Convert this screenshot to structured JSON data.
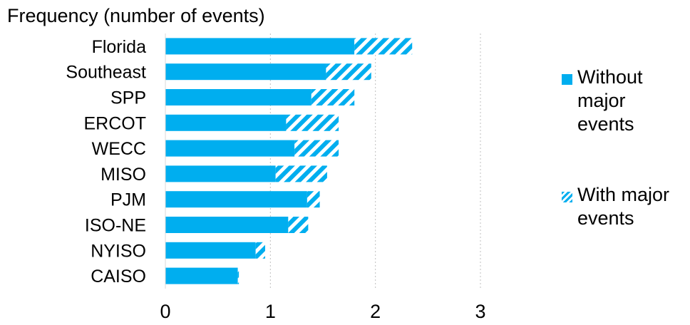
{
  "chart_data": {
    "type": "bar",
    "orientation": "horizontal",
    "stacked": true,
    "title": "Frequency (number of events)",
    "categories": [
      "Florida",
      "Southeast",
      "SPP",
      "ERCOT",
      "WECC",
      "MISO",
      "PJM",
      "ISO-NE",
      "NYISO",
      "CAISO"
    ],
    "series": [
      {
        "name": "Without major events",
        "values": [
          1.8,
          1.53,
          1.39,
          1.15,
          1.23,
          1.05,
          1.35,
          1.17,
          0.86,
          0.69
        ],
        "fill": "solid"
      },
      {
        "name": "With major events",
        "values": [
          0.55,
          0.43,
          0.41,
          0.5,
          0.42,
          0.49,
          0.12,
          0.19,
          0.09,
          0.01
        ],
        "fill": "hatched"
      }
    ],
    "xlim": [
      0,
      3
    ],
    "xticks": [
      "0",
      "1",
      "2",
      "3"
    ],
    "grid": {
      "vertical": true,
      "style": "dotted"
    },
    "legend_position": "right",
    "colors": {
      "bar": "#00aeef",
      "grid": "#bfbfbf",
      "axis": "#d9d9d9"
    }
  }
}
